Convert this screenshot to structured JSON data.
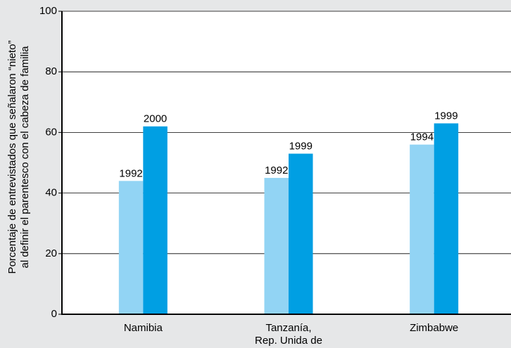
{
  "chart_data": {
    "type": "bar",
    "ylabel": [
      "Porcentaje de entrevistados que señalaron “nieto”",
      "al definir el parentesco con el cabeza de familia"
    ],
    "categories": [
      [
        "Namibia"
      ],
      [
        "Tanzanía,",
        "Rep. Unida de"
      ],
      [
        "Zimbabwe"
      ]
    ],
    "series": [
      {
        "color": "#92d4f4",
        "values": [
          44,
          45,
          56
        ],
        "bar_labels": [
          "1992",
          "1992",
          "1994"
        ]
      },
      {
        "color": "#009fe3",
        "values": [
          62,
          53,
          63
        ],
        "bar_labels": [
          "2000",
          "1999",
          "1999"
        ]
      }
    ],
    "ylim": [
      0,
      100
    ],
    "yticks": [
      0,
      20,
      40,
      60,
      80,
      100
    ],
    "grid": true
  }
}
